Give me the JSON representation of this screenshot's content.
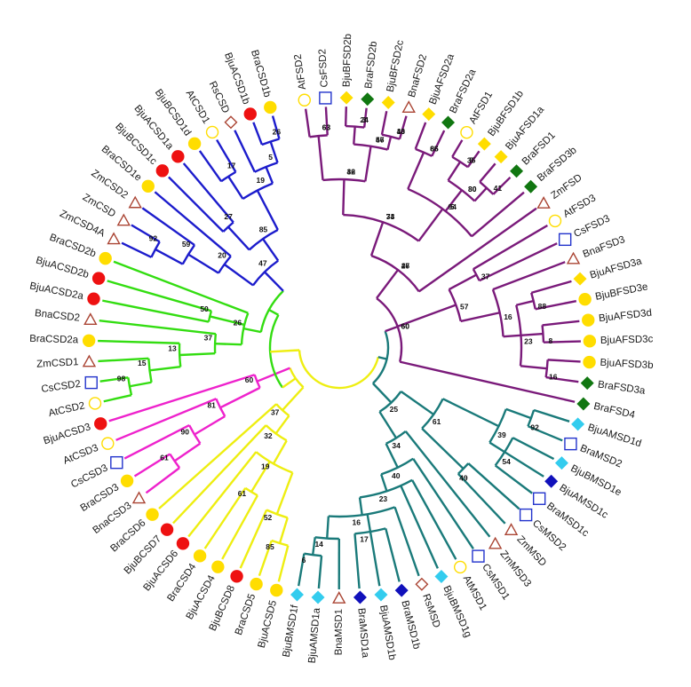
{
  "figure": {
    "title": "",
    "legend_shapes": {
      "circle-yellow": "Brassica juncea",
      "circle-red": "Brassica juncea",
      "diamond-green": "Brassica rapa",
      "triangle-outline": "Zea mays / Brassica napus",
      "square-outline": "Cucumis sativus",
      "circle-outline": "Arabidopsis thaliana"
    }
  },
  "colors": {
    "blue": "#1c1ccc",
    "green": "#33dd11",
    "magenta": "#ee22cc",
    "yellow": "#eeee11",
    "purple": "#7a1a7a",
    "teal": "#1a7a7a",
    "red": "#ee1111",
    "gold": "#ffdd00",
    "darkgreen": "#117711",
    "cyan": "#33ccee",
    "navy": "#1111bb",
    "brown": "#aa4433",
    "sqblue": "#2233cc"
  },
  "leaves": [
    {
      "label": "AtFSD2",
      "marker": "circle-open",
      "color": "gold",
      "clade": "purple"
    },
    {
      "label": "CsFSD2",
      "marker": "square-open",
      "color": "sqblue",
      "clade": "purple"
    },
    {
      "label": "BjuBFSD2b",
      "marker": "diamond",
      "color": "gold",
      "clade": "purple"
    },
    {
      "label": "BraFSD2b",
      "marker": "diamond",
      "color": "darkgreen",
      "clade": "purple"
    },
    {
      "label": "BjuBFSD2c",
      "marker": "diamond",
      "color": "gold",
      "clade": "purple"
    },
    {
      "label": "BnaFSD2",
      "marker": "triangle-open",
      "color": "brown",
      "clade": "purple"
    },
    {
      "label": "BjuAFSD2a",
      "marker": "diamond",
      "color": "gold",
      "clade": "purple"
    },
    {
      "label": "BraFSD2a",
      "marker": "diamond",
      "color": "darkgreen",
      "clade": "purple"
    },
    {
      "label": "AtFSD1",
      "marker": "circle-open",
      "color": "gold",
      "clade": "purple"
    },
    {
      "label": "BjuBFSD1b",
      "marker": "diamond",
      "color": "gold",
      "clade": "purple"
    },
    {
      "label": "BjuAFSD1a",
      "marker": "diamond",
      "color": "gold",
      "clade": "purple"
    },
    {
      "label": "BraFSD1",
      "marker": "diamond",
      "color": "darkgreen",
      "clade": "purple"
    },
    {
      "label": "BraFSD3b",
      "marker": "diamond",
      "color": "darkgreen",
      "clade": "purple"
    },
    {
      "label": "ZmFSD",
      "marker": "triangle-open",
      "color": "brown",
      "clade": "purple"
    },
    {
      "label": "AtFSD3",
      "marker": "circle-open",
      "color": "gold",
      "clade": "purple"
    },
    {
      "label": "CsFSD3",
      "marker": "square-open",
      "color": "sqblue",
      "clade": "purple"
    },
    {
      "label": "BnaFSD3",
      "marker": "triangle-open",
      "color": "brown",
      "clade": "purple"
    },
    {
      "label": "BjuAFSD3a",
      "marker": "diamond",
      "color": "gold",
      "clade": "purple"
    },
    {
      "label": "BjuBFSD3e",
      "marker": "circle",
      "color": "gold",
      "clade": "purple"
    },
    {
      "label": "BjuAFSD3d",
      "marker": "circle",
      "color": "gold",
      "clade": "purple"
    },
    {
      "label": "BjuAFSD3c",
      "marker": "circle",
      "color": "gold",
      "clade": "purple"
    },
    {
      "label": "BjuAFSD3b",
      "marker": "circle",
      "color": "gold",
      "clade": "purple"
    },
    {
      "label": "BraFSD3a",
      "marker": "diamond",
      "color": "darkgreen",
      "clade": "purple"
    },
    {
      "label": "BraFSD4",
      "marker": "diamond",
      "color": "darkgreen",
      "clade": "purple"
    },
    {
      "label": "BjuAMSD1d",
      "marker": "diamond",
      "color": "cyan",
      "clade": "teal"
    },
    {
      "label": "BraMSD2",
      "marker": "square-open",
      "color": "sqblue",
      "clade": "teal"
    },
    {
      "label": "BjuBMSD1e",
      "marker": "diamond",
      "color": "cyan",
      "clade": "teal"
    },
    {
      "label": "BjuAMSD1c",
      "marker": "diamond",
      "color": "navy",
      "clade": "teal"
    },
    {
      "label": "BraMSD1c",
      "marker": "square-open",
      "color": "sqblue",
      "clade": "teal"
    },
    {
      "label": "CsMSD2",
      "marker": "square-open",
      "color": "sqblue",
      "clade": "teal"
    },
    {
      "label": "ZmMSD",
      "marker": "triangle-open",
      "color": "brown",
      "clade": "teal"
    },
    {
      "label": "ZmMSD3",
      "marker": "triangle-open",
      "color": "brown",
      "clade": "teal"
    },
    {
      "label": "CsMSD1",
      "marker": "square-open",
      "color": "sqblue",
      "clade": "teal"
    },
    {
      "label": "AtMSD1",
      "marker": "circle-open",
      "color": "gold",
      "clade": "teal"
    },
    {
      "label": "BjuBMSD1g",
      "marker": "diamond",
      "color": "cyan",
      "clade": "teal"
    },
    {
      "label": "RsMSD",
      "marker": "diamond-open",
      "color": "brown",
      "clade": "teal"
    },
    {
      "label": "BraMSD1b",
      "marker": "diamond",
      "color": "navy",
      "clade": "teal"
    },
    {
      "label": "BjuAMSD1b",
      "marker": "diamond",
      "color": "cyan",
      "clade": "teal"
    },
    {
      "label": "BraMSD1a",
      "marker": "diamond",
      "color": "navy",
      "clade": "teal"
    },
    {
      "label": "BnaMSD1",
      "marker": "triangle-open",
      "color": "brown",
      "clade": "teal"
    },
    {
      "label": "BjuAMSD1a",
      "marker": "diamond",
      "color": "cyan",
      "clade": "teal"
    },
    {
      "label": "BjuBMSD1f",
      "marker": "diamond",
      "color": "cyan",
      "clade": "teal"
    },
    {
      "label": "BjuACSD5",
      "marker": "circle",
      "color": "gold",
      "clade": "yellow"
    },
    {
      "label": "BraCSD5",
      "marker": "circle",
      "color": "gold",
      "clade": "yellow"
    },
    {
      "label": "BjuBCSD8",
      "marker": "circle",
      "color": "red",
      "clade": "yellow"
    },
    {
      "label": "BjuACSD4",
      "marker": "circle",
      "color": "gold",
      "clade": "yellow"
    },
    {
      "label": "BraCSD4",
      "marker": "circle",
      "color": "gold",
      "clade": "yellow"
    },
    {
      "label": "BjuACSD6",
      "marker": "circle",
      "color": "red",
      "clade": "yellow"
    },
    {
      "label": "BjuBCSD7",
      "marker": "circle",
      "color": "red",
      "clade": "yellow"
    },
    {
      "label": "BraCSD6",
      "marker": "circle",
      "color": "gold",
      "clade": "yellow"
    },
    {
      "label": "BnaCSD3",
      "marker": "triangle-open",
      "color": "brown",
      "clade": "magenta"
    },
    {
      "label": "BraCSD3",
      "marker": "circle",
      "color": "gold",
      "clade": "magenta"
    },
    {
      "label": "CsCSD3",
      "marker": "square-open",
      "color": "sqblue",
      "clade": "magenta"
    },
    {
      "label": "AtCSD3",
      "marker": "circle-open",
      "color": "gold",
      "clade": "magenta"
    },
    {
      "label": "BjuACSD3",
      "marker": "circle",
      "color": "red",
      "clade": "magenta"
    },
    {
      "label": "AtCSD2",
      "marker": "circle-open",
      "color": "gold",
      "clade": "green"
    },
    {
      "label": "CsCSD2",
      "marker": "square-open",
      "color": "sqblue",
      "clade": "green"
    },
    {
      "label": "ZmCSD1",
      "marker": "triangle-open",
      "color": "brown",
      "clade": "green"
    },
    {
      "label": "BraCSD2a",
      "marker": "circle",
      "color": "gold",
      "clade": "green"
    },
    {
      "label": "BnaCSD2",
      "marker": "triangle-open",
      "color": "brown",
      "clade": "green"
    },
    {
      "label": "BjuACSD2a",
      "marker": "circle",
      "color": "red",
      "clade": "green"
    },
    {
      "label": "BjuACSD2b",
      "marker": "circle",
      "color": "red",
      "clade": "green"
    },
    {
      "label": "BraCSD2b",
      "marker": "circle",
      "color": "gold",
      "clade": "green"
    },
    {
      "label": "ZmCSD4A",
      "marker": "triangle-open",
      "color": "brown",
      "clade": "blue"
    },
    {
      "label": "ZmCSD",
      "marker": "triangle-open",
      "color": "brown",
      "clade": "blue"
    },
    {
      "label": "ZmCSD2",
      "marker": "triangle-open",
      "color": "brown",
      "clade": "blue"
    },
    {
      "label": "BraCSD1e",
      "marker": "circle",
      "color": "gold",
      "clade": "blue"
    },
    {
      "label": "BjuBCSD1c",
      "marker": "circle",
      "color": "red",
      "clade": "blue"
    },
    {
      "label": "BjuACSD1a",
      "marker": "circle",
      "color": "red",
      "clade": "blue"
    },
    {
      "label": "BjuBCSD1d",
      "marker": "circle",
      "color": "gold",
      "clade": "blue"
    },
    {
      "label": "AtCSD1",
      "marker": "circle-open",
      "color": "gold",
      "clade": "blue"
    },
    {
      "label": "RsCSD",
      "marker": "diamond-open",
      "color": "brown",
      "clade": "blue"
    },
    {
      "label": "BjuACSD1b",
      "marker": "circle",
      "color": "red",
      "clade": "blue"
    },
    {
      "label": "BraCSD1b",
      "marker": "circle",
      "color": "gold",
      "clade": "blue"
    }
  ],
  "bootstrap_values": [
    "60",
    "26",
    "73",
    "42",
    "63",
    "56",
    "24",
    "40",
    "94",
    "66",
    "30",
    "35",
    "41",
    "57",
    "37",
    "16",
    "23",
    "88",
    "8",
    "16",
    "25",
    "61",
    "39",
    "92",
    "54",
    "49",
    "34",
    "40",
    "23",
    "16",
    "17",
    "14",
    "6",
    "37",
    "32",
    "19",
    "52",
    "85",
    "61",
    "60",
    "81",
    "90",
    "61",
    "26",
    "37",
    "13",
    "15",
    "98",
    "50",
    "47",
    "20",
    "59",
    "92",
    "85",
    "27",
    "19",
    "17",
    "5",
    "26",
    "60",
    "47",
    "34",
    "36",
    "63",
    "47",
    "3",
    "13",
    "5",
    "85",
    "80",
    "5"
  ]
}
